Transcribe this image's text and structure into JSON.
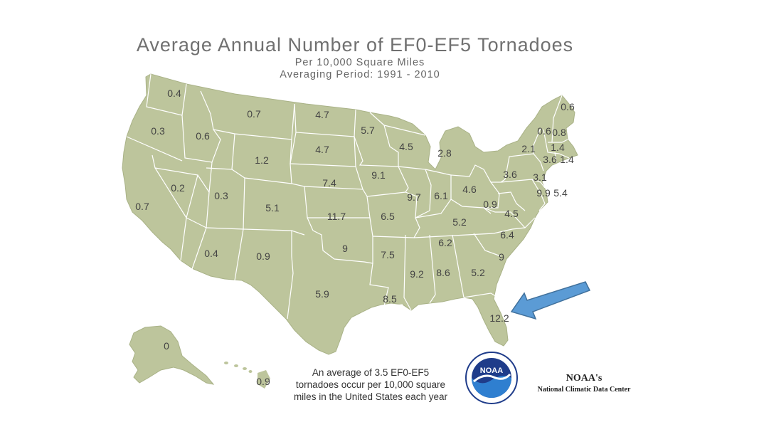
{
  "title": "Average Annual Number of EF0-EF5 Tornadoes",
  "subtitle1": "Per 10,000 Square Miles",
  "subtitle2": "Averaging Period:  1991 - 2010",
  "note": "An average of 3.5 EF0-EF5 tornadoes occur per 10,000 square miles in the United States each year",
  "source": {
    "name": "NOAA's",
    "center": "National Climatic Data Center",
    "logo_text": "NOAA"
  },
  "colors": {
    "land": "#bdc59c",
    "border": "#ffffff",
    "arrow": "#5b9bd5",
    "arrow_outline": "#41719c",
    "noaa_blue": "#1f3c8a",
    "noaa_sky": "#2f7fd0"
  },
  "state_values": [
    {
      "state": "WA",
      "label": "0.4"
    },
    {
      "state": "OR",
      "label": "0.3"
    },
    {
      "state": "CA",
      "label": "0.7"
    },
    {
      "state": "NV",
      "label": "0.2"
    },
    {
      "state": "ID",
      "label": "0.6"
    },
    {
      "state": "MT",
      "label": "0.7"
    },
    {
      "state": "WY",
      "label": "1.2"
    },
    {
      "state": "UT",
      "label": "0.3"
    },
    {
      "state": "AZ",
      "label": "0.4"
    },
    {
      "state": "CO",
      "label": "5.1"
    },
    {
      "state": "NM",
      "label": "0.9"
    },
    {
      "state": "ND",
      "label": "4.7"
    },
    {
      "state": "SD",
      "label": "4.7"
    },
    {
      "state": "NE",
      "label": "7.4"
    },
    {
      "state": "KS",
      "label": "11.7"
    },
    {
      "state": "OK",
      "label": "9"
    },
    {
      "state": "TX",
      "label": "5.9"
    },
    {
      "state": "MN",
      "label": "5.7"
    },
    {
      "state": "IA",
      "label": "9.1"
    },
    {
      "state": "MO",
      "label": "6.5"
    },
    {
      "state": "AR",
      "label": "7.5"
    },
    {
      "state": "LA",
      "label": "8.5"
    },
    {
      "state": "WI",
      "label": "4.5"
    },
    {
      "state": "IL",
      "label": "9.7"
    },
    {
      "state": "MI",
      "label": "2.8"
    },
    {
      "state": "IN",
      "label": "6.1"
    },
    {
      "state": "OH",
      "label": "4.6"
    },
    {
      "state": "KY",
      "label": "5.2"
    },
    {
      "state": "TN",
      "label": "6.2"
    },
    {
      "state": "MS",
      "label": "9.2"
    },
    {
      "state": "AL",
      "label": "8.6"
    },
    {
      "state": "GA",
      "label": "5.2"
    },
    {
      "state": "FL",
      "label": "12.2"
    },
    {
      "state": "SC",
      "label": "9"
    },
    {
      "state": "NC",
      "label": "6.4"
    },
    {
      "state": "VA",
      "label": "4.5"
    },
    {
      "state": "WV",
      "label": "0.9"
    },
    {
      "state": "PA",
      "label": "3.6"
    },
    {
      "state": "NY",
      "label": "2.1"
    },
    {
      "state": "VT",
      "label": "0.6"
    },
    {
      "state": "NH",
      "label": "0.8"
    },
    {
      "state": "ME",
      "label": "0.6"
    },
    {
      "state": "MA",
      "label": "1.4"
    },
    {
      "state": "CT",
      "label": "3.6"
    },
    {
      "state": "RI",
      "label": "1.4"
    },
    {
      "state": "NJ",
      "label": "3.1"
    },
    {
      "state": "DE",
      "label": "9.9"
    },
    {
      "state": "MD",
      "label": "5.4"
    },
    {
      "state": "AK",
      "label": "0"
    },
    {
      "state": "HI",
      "label": "0.9"
    }
  ]
}
